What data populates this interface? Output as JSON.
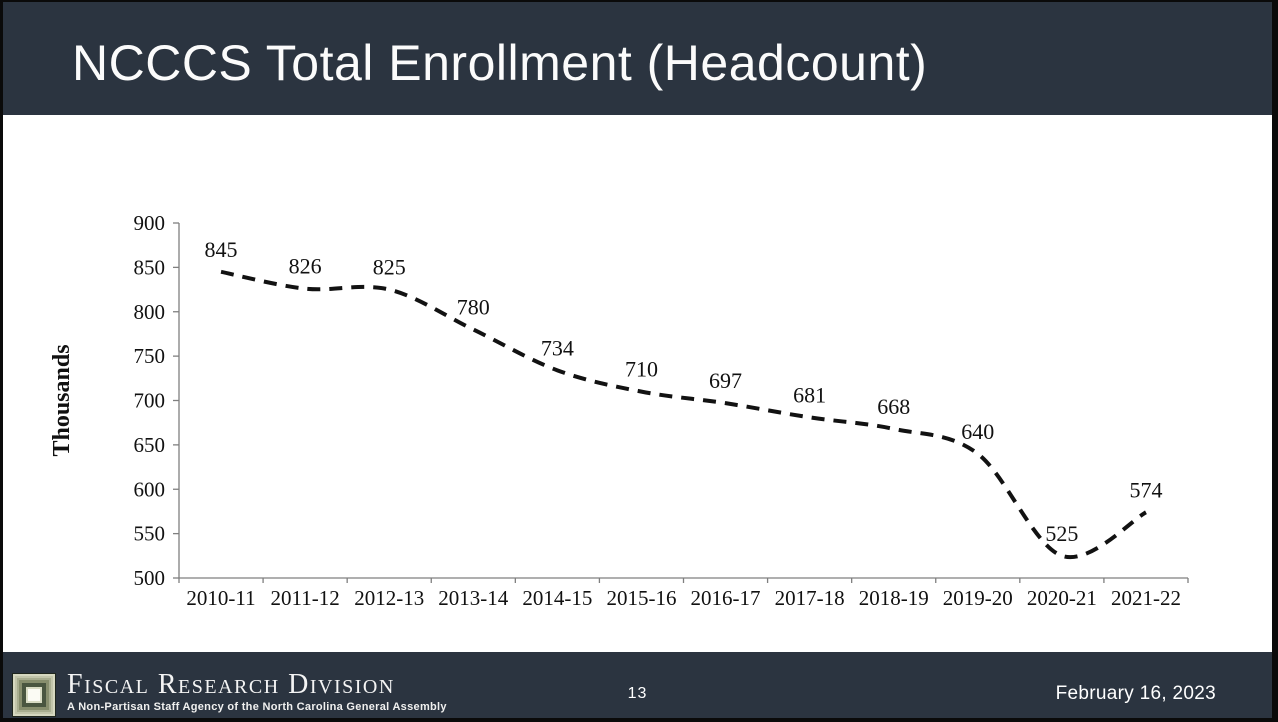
{
  "header": {
    "title": "NCCCS Total Enrollment (Headcount)"
  },
  "footer": {
    "brand": "Fiscal Research Division",
    "tagline": "A Non-Partisan Staff Agency of the North Carolina General Assembly",
    "page_number": "13",
    "date": "February 16, 2023",
    "logo_icon": "nested-squares-logo"
  },
  "colors": {
    "header_bg": "#2b3440",
    "footer_bg": "#2b3440",
    "frame": "#0a0a0a",
    "line": "#121212",
    "axis": "#7f7f7f",
    "text": "#111111",
    "logo_green_dark": "#4a5640",
    "logo_sage_light": "#d6d8c0"
  },
  "chart_data": {
    "type": "line",
    "title": "",
    "categories": [
      "2010-11",
      "2011-12",
      "2012-13",
      "2013-14",
      "2014-15",
      "2015-16",
      "2016-17",
      "2017-18",
      "2018-19",
      "2019-20",
      "2020-21",
      "2021-22"
    ],
    "values": [
      845,
      826,
      825,
      780,
      734,
      710,
      697,
      681,
      668,
      640,
      525,
      574
    ],
    "data_labels": [
      "845",
      "826",
      "825",
      "780",
      "734",
      "710",
      "697",
      "681",
      "668",
      "640",
      "525",
      "574"
    ],
    "xlabel": "",
    "ylabel": "Thousands",
    "ylim": [
      500,
      900
    ],
    "yticks": [
      500,
      550,
      600,
      650,
      700,
      750,
      800,
      850,
      900
    ],
    "grid": false,
    "legend": false,
    "smooth": true,
    "line_style": "dashed",
    "line_color": "#121212"
  }
}
